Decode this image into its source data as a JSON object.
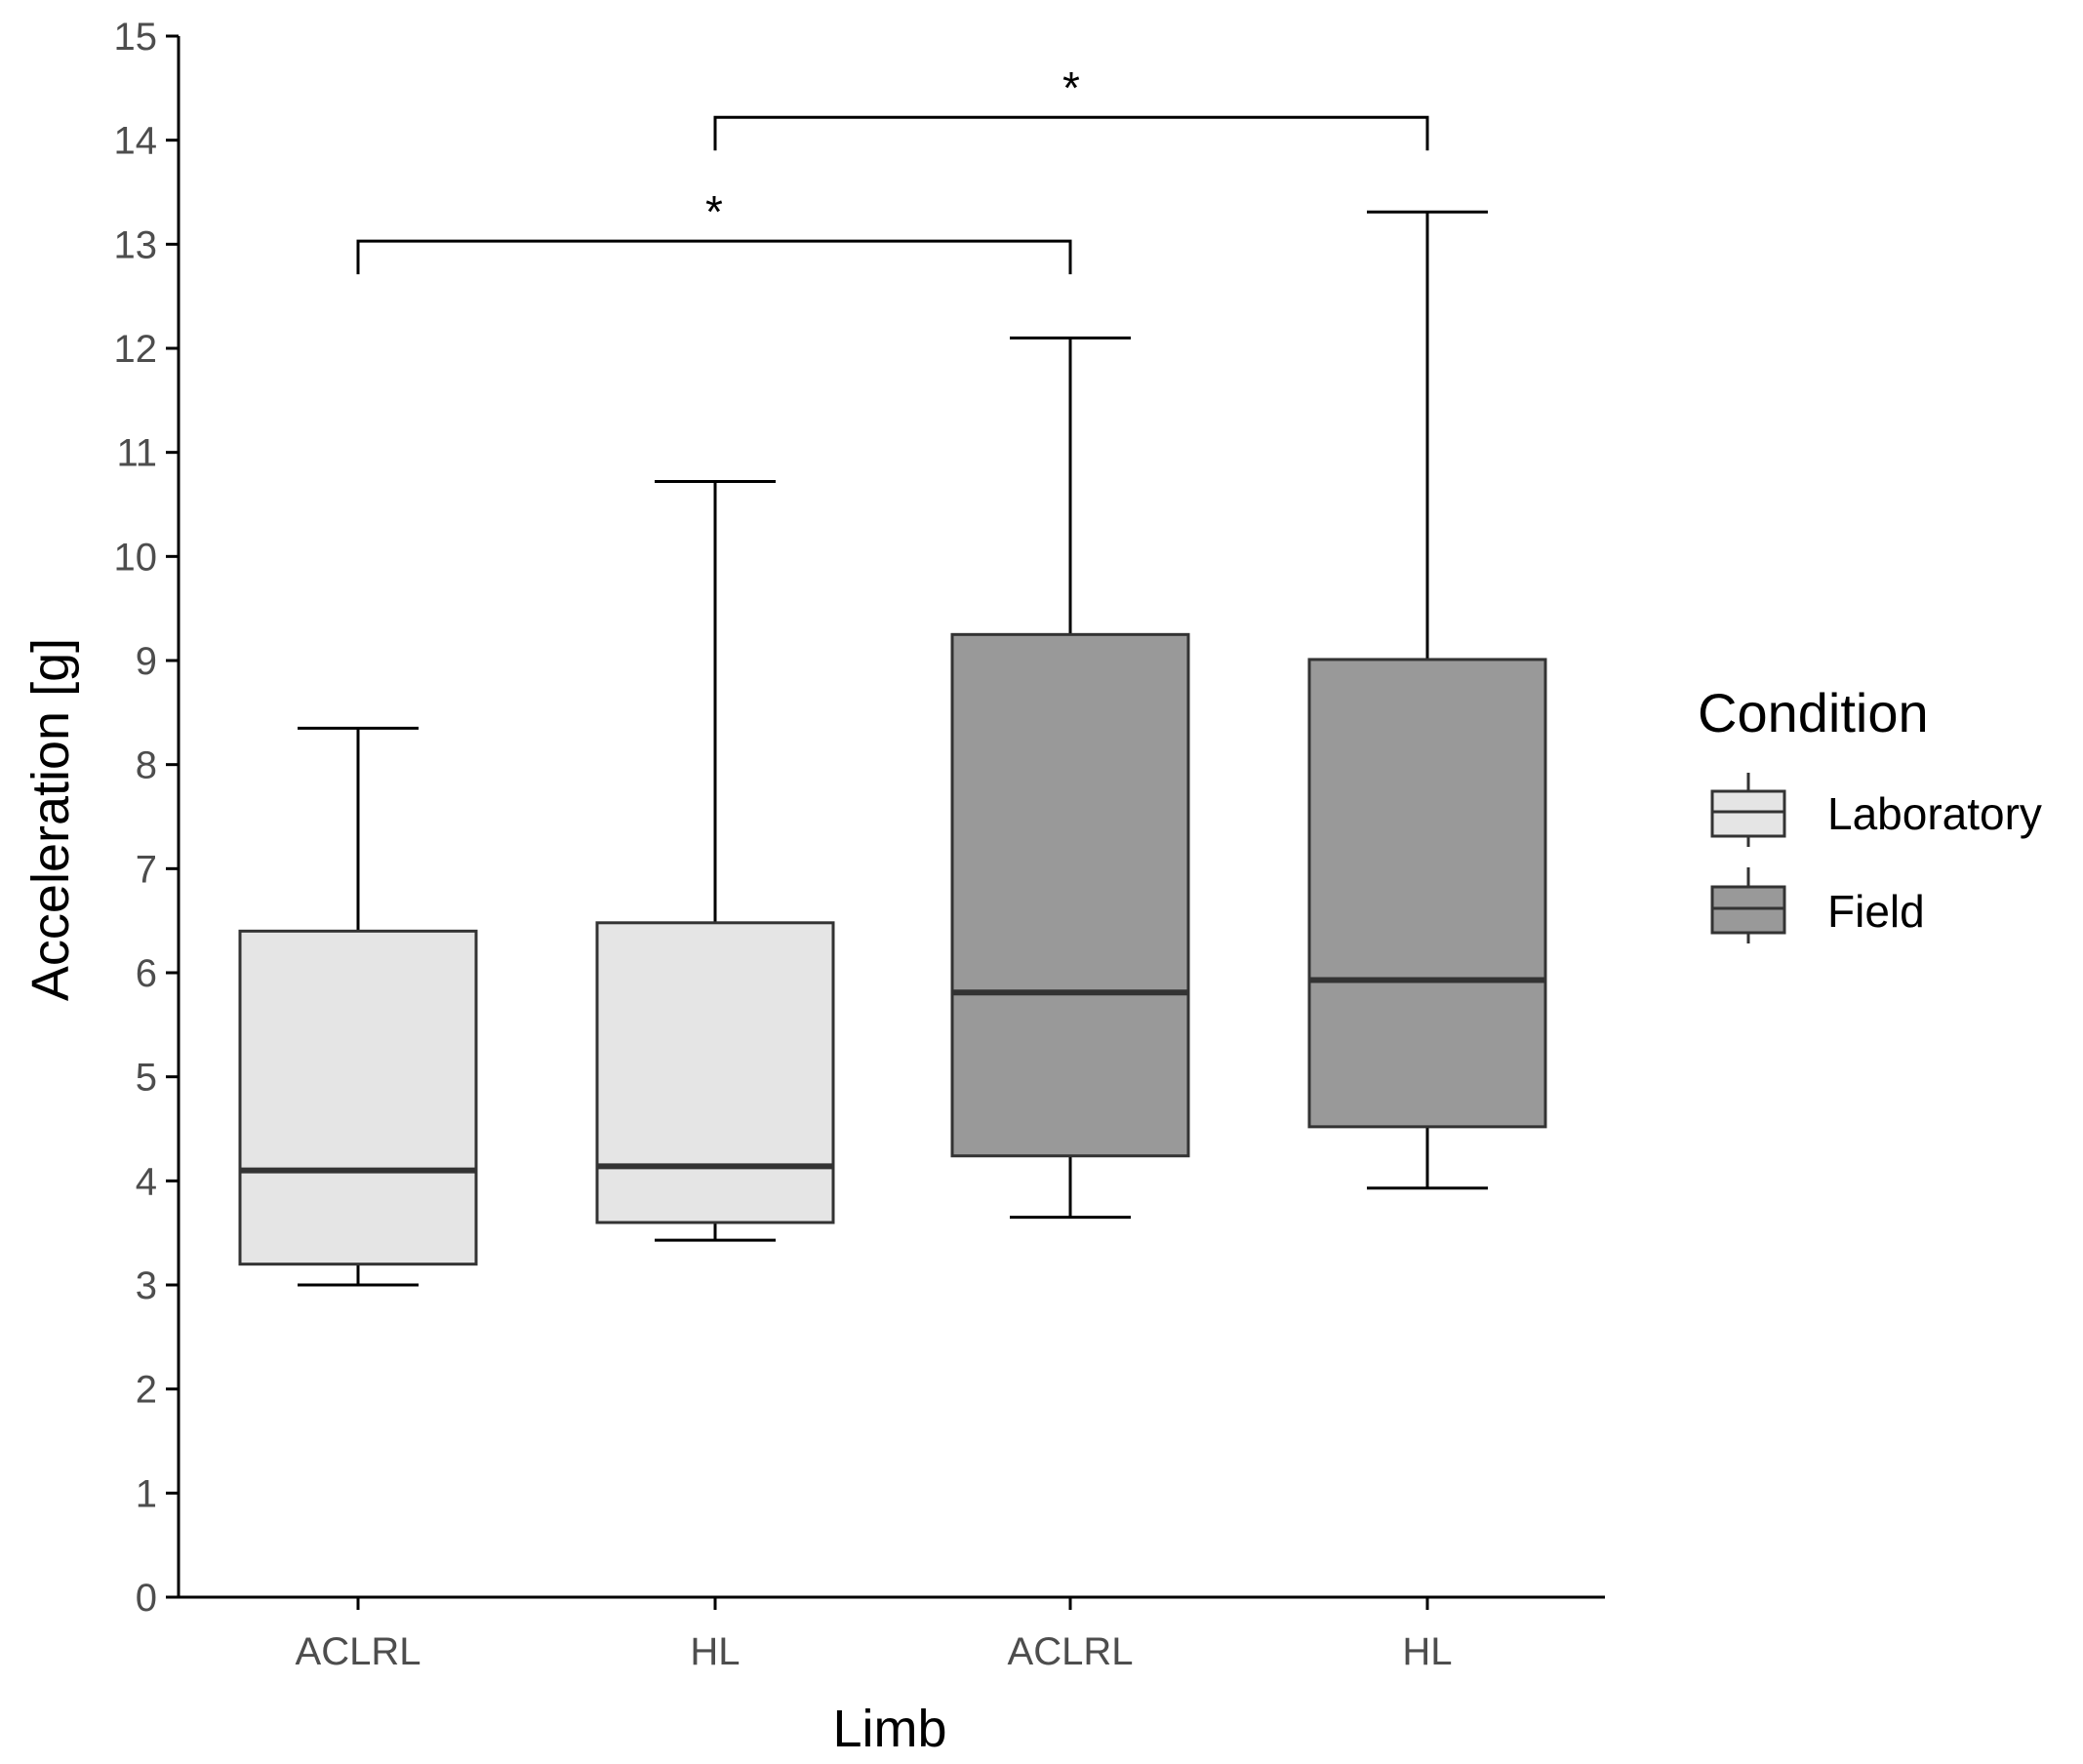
{
  "chart_data": {
    "type": "boxplot",
    "title": "",
    "xlabel": "Limb",
    "ylabel": "Acceleration [g]",
    "ylim": [
      0,
      15
    ],
    "yticks": [
      0,
      1,
      2,
      3,
      4,
      5,
      6,
      7,
      8,
      9,
      10,
      11,
      12,
      13,
      14,
      15
    ],
    "categories": [
      "ACLRL",
      "HL",
      "ACLRL",
      "HL"
    ],
    "boxes": [
      {
        "category": "ACLRL",
        "condition": "Laboratory",
        "min": 3.0,
        "q1": 3.2,
        "median": 4.1,
        "q3": 6.4,
        "max": 8.35
      },
      {
        "category": "HL",
        "condition": "Laboratory",
        "min": 3.43,
        "q1": 3.6,
        "median": 4.14,
        "q3": 6.48,
        "max": 10.72
      },
      {
        "category": "ACLRL",
        "condition": "Field",
        "min": 3.65,
        "q1": 4.24,
        "median": 5.81,
        "q3": 9.25,
        "max": 12.1
      },
      {
        "category": "HL",
        "condition": "Field",
        "min": 3.93,
        "q1": 4.52,
        "median": 5.93,
        "q3": 9.01,
        "max": 13.31
      }
    ],
    "significance": [
      {
        "from": 0,
        "to": 2,
        "height": 13.03,
        "label": "*"
      },
      {
        "from": 1,
        "to": 3,
        "height": 14.22,
        "label": "*"
      }
    ],
    "legend": {
      "title": "Condition",
      "position": "right",
      "entries": [
        {
          "label": "Laboratory",
          "color": "#e5e5e5"
        },
        {
          "label": "Field",
          "color": "#999999"
        }
      ]
    },
    "colors": {
      "Laboratory": "#e5e5e5",
      "Field": "#999999",
      "outline": "#333333",
      "axis": "#000000"
    }
  }
}
